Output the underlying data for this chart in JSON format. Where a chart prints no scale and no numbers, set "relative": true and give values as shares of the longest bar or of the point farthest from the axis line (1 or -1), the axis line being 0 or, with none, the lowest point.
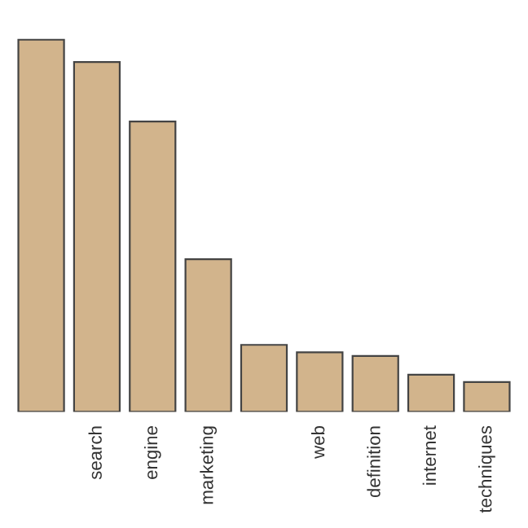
{
  "chart_data": {
    "type": "bar",
    "relative": true,
    "categories": [
      null,
      "search",
      "engine",
      "marketing",
      null,
      "web",
      "definition",
      "internet",
      "techniques"
    ],
    "values": [
      1,
      0.94,
      0.78,
      0.41,
      0.18,
      0.16,
      0.15,
      0.1,
      0.08
    ],
    "color": "#d2b48c",
    "grid": false,
    "legend": false
  }
}
